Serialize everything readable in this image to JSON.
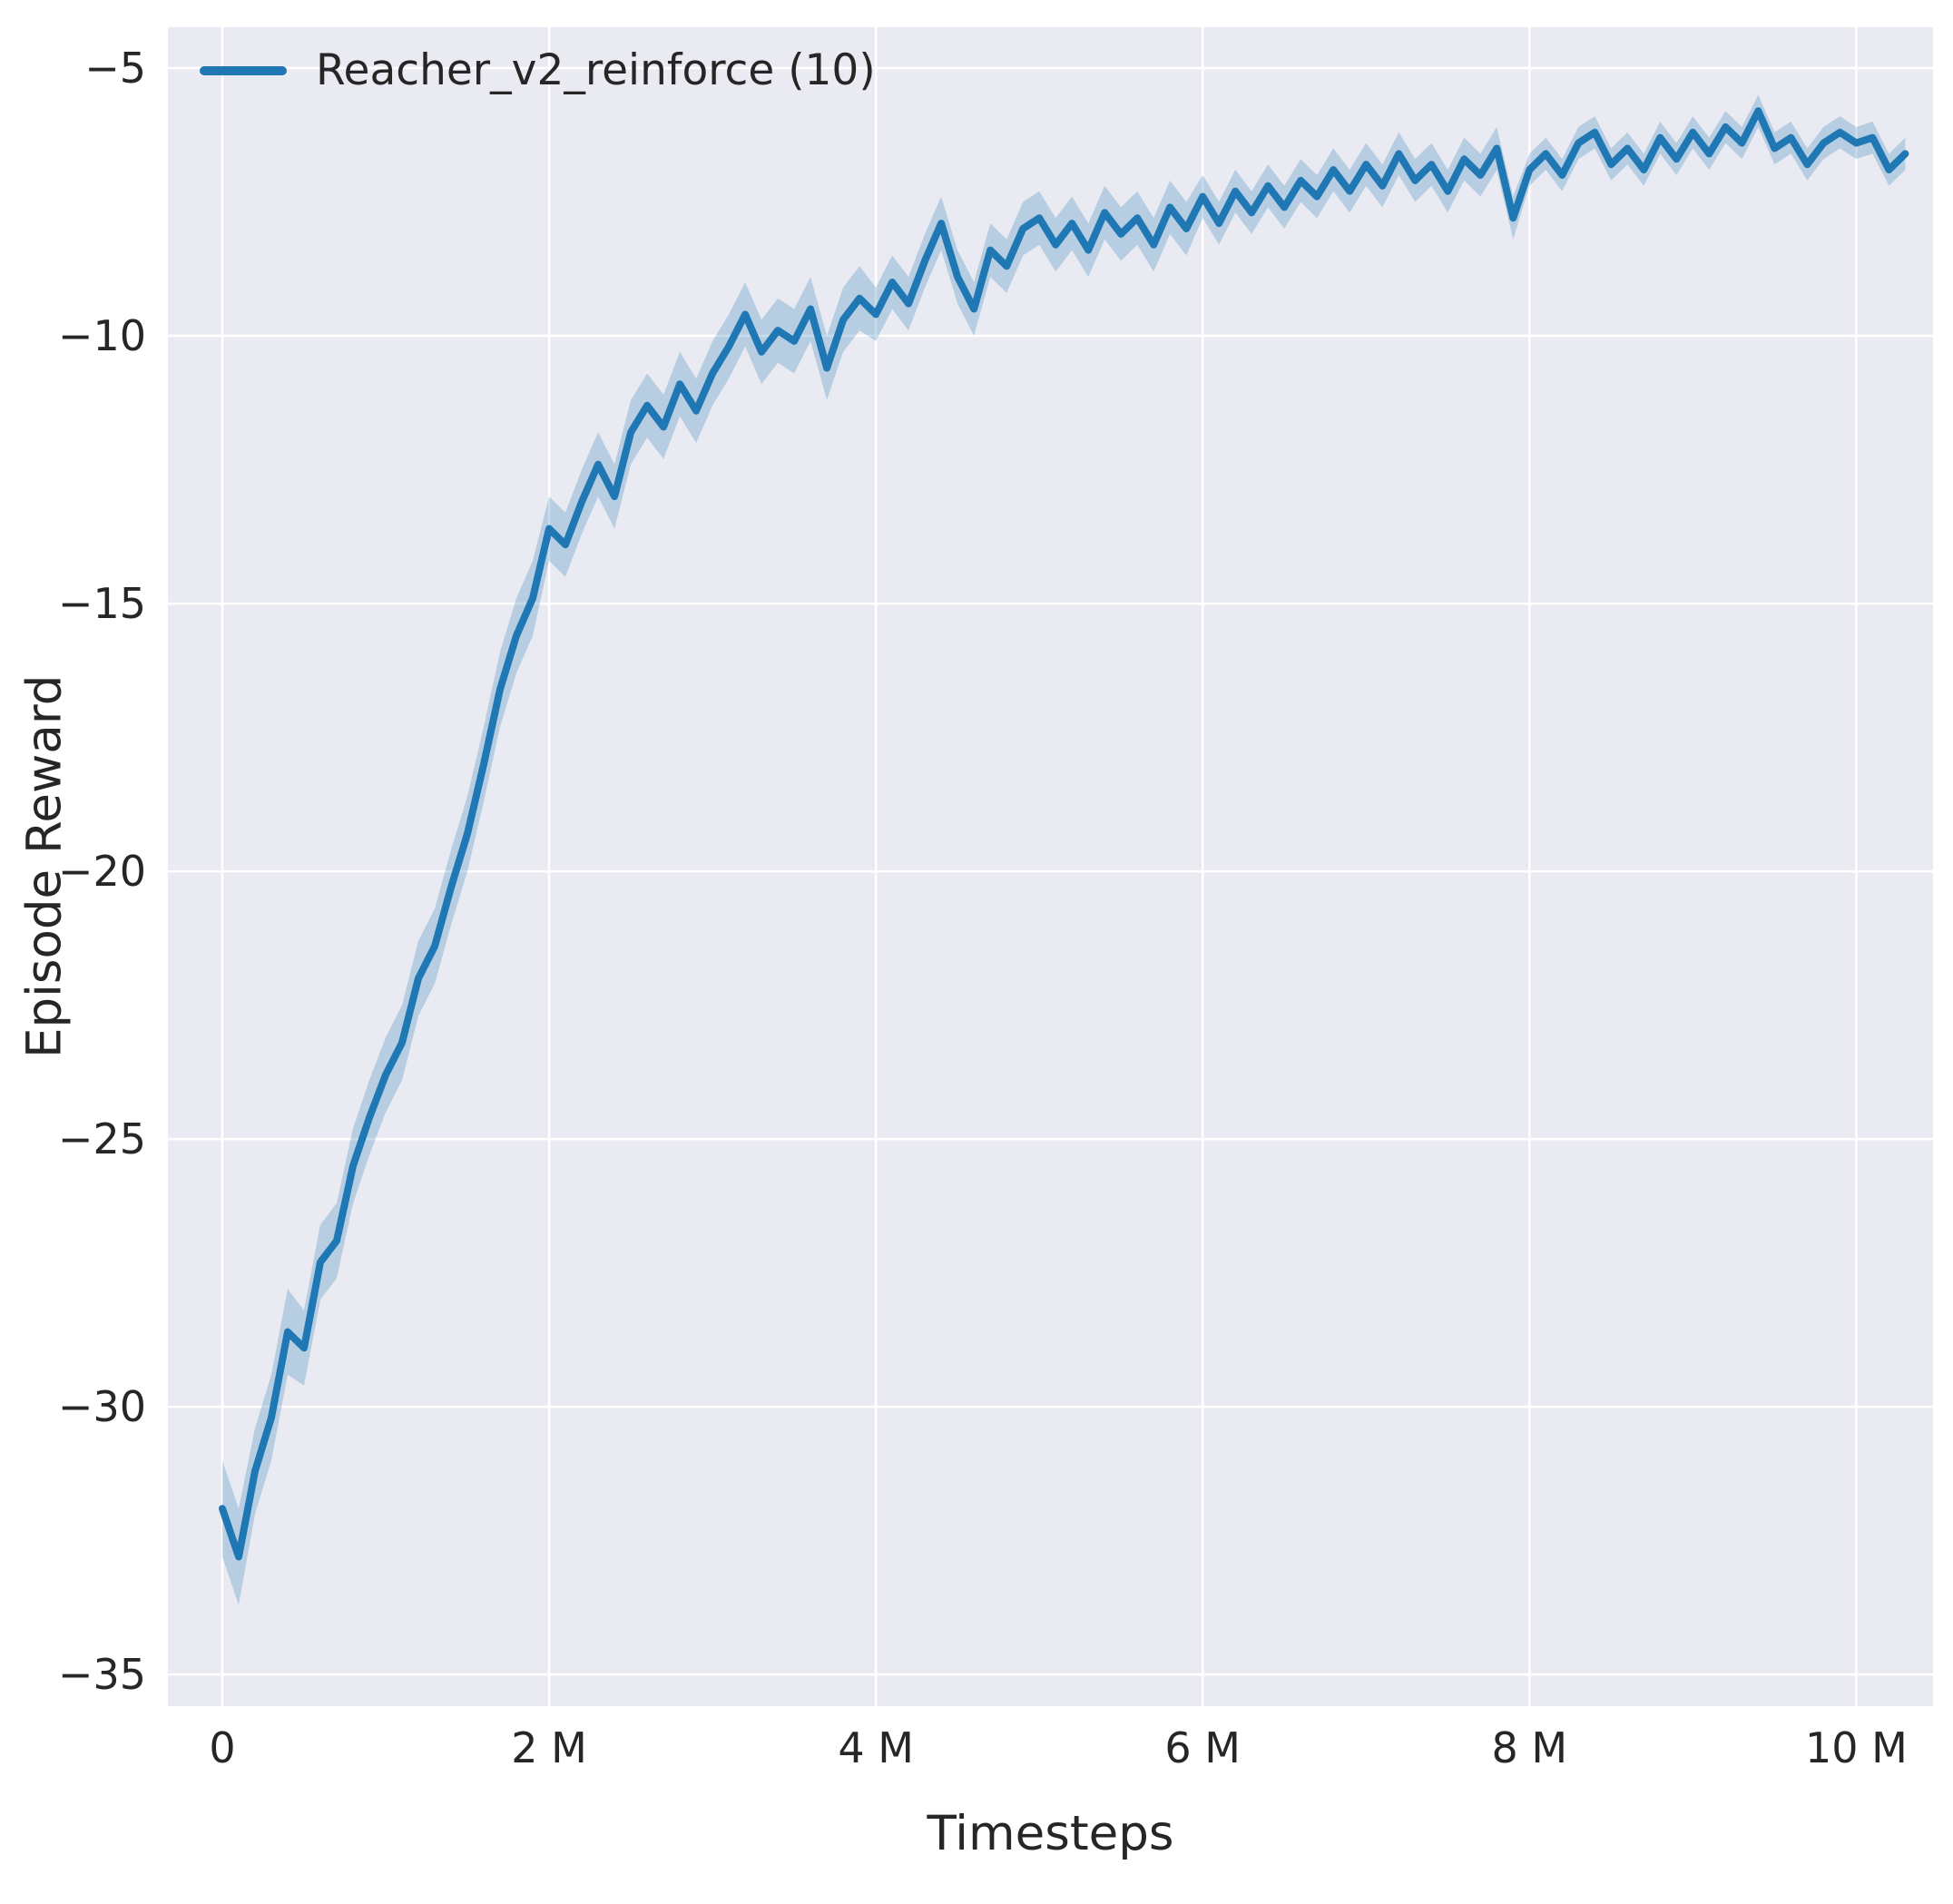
{
  "chart_data": {
    "type": "line",
    "title": "",
    "xlabel": "Timesteps",
    "ylabel": "Episode Reward",
    "x_unit": "millions of timesteps",
    "grid": true,
    "legend_position": "upper left",
    "colors": {
      "plot_bg": "#eaeaf2",
      "gridline": "#ffffff",
      "text": "#262626",
      "series": "#1f77b4",
      "band_opacity": 0.25
    },
    "xlim": [
      -0.333,
      10.47
    ],
    "ylim": [
      -35.59,
      -4.237
    ],
    "xticks": [
      {
        "v": 0,
        "label": "0"
      },
      {
        "v": 2,
        "label": "2 M"
      },
      {
        "v": 4,
        "label": "4 M"
      },
      {
        "v": 6,
        "label": "6 M"
      },
      {
        "v": 8,
        "label": "8 M"
      },
      {
        "v": 10,
        "label": "10 M"
      }
    ],
    "yticks": [
      {
        "v": -5,
        "label": "−5"
      },
      {
        "v": -10,
        "label": "−10"
      },
      {
        "v": -15,
        "label": "−15"
      },
      {
        "v": -20,
        "label": "−20"
      },
      {
        "v": -25,
        "label": "−25"
      },
      {
        "v": -30,
        "label": "−30"
      },
      {
        "v": -35,
        "label": "−35"
      }
    ],
    "legend": [
      {
        "name": "Reacher_v2_reinforce (10)",
        "color": "#1f77b4"
      }
    ],
    "series": [
      {
        "name": "Reacher_v2_reinforce (10)",
        "color": "#1f77b4",
        "x": [
          0.0,
          0.1,
          0.2,
          0.3,
          0.4,
          0.5,
          0.6,
          0.7,
          0.8,
          0.9,
          1.0,
          1.1,
          1.2,
          1.3,
          1.4,
          1.5,
          1.6,
          1.7,
          1.8,
          1.9,
          2.0,
          2.1,
          2.2,
          2.3,
          2.4,
          2.5,
          2.6,
          2.7,
          2.8,
          2.9,
          3.0,
          3.1,
          3.2,
          3.3,
          3.4,
          3.5,
          3.6,
          3.7,
          3.8,
          3.9,
          4.0,
          4.1,
          4.2,
          4.3,
          4.4,
          4.5,
          4.6,
          4.7,
          4.8,
          4.9,
          5.0,
          5.1,
          5.2,
          5.3,
          5.4,
          5.5,
          5.6,
          5.7,
          5.8,
          5.9,
          6.0,
          6.1,
          6.2,
          6.3,
          6.4,
          6.5,
          6.6,
          6.7,
          6.8,
          6.9,
          7.0,
          7.1,
          7.2,
          7.3,
          7.4,
          7.5,
          7.6,
          7.7,
          7.8,
          7.9,
          8.0,
          8.1,
          8.2,
          8.3,
          8.4,
          8.5,
          8.6,
          8.7,
          8.8,
          8.9,
          9.0,
          9.1,
          9.2,
          9.3,
          9.4,
          9.5,
          9.6,
          9.7,
          9.8,
          9.9,
          10.0,
          10.1,
          10.2,
          10.3
        ],
        "y": [
          -31.9,
          -32.8,
          -31.2,
          -30.2,
          -28.6,
          -28.9,
          -27.3,
          -26.9,
          -25.5,
          -24.6,
          -23.8,
          -23.2,
          -22.0,
          -21.4,
          -20.3,
          -19.3,
          -18.0,
          -16.6,
          -15.6,
          -14.9,
          -13.6,
          -13.9,
          -13.1,
          -12.4,
          -13.0,
          -11.8,
          -11.3,
          -11.7,
          -10.9,
          -11.4,
          -10.7,
          -10.2,
          -9.6,
          -10.3,
          -9.9,
          -10.1,
          -9.5,
          -10.6,
          -9.7,
          -9.3,
          -9.6,
          -9.0,
          -9.4,
          -8.6,
          -7.9,
          -8.9,
          -9.5,
          -8.4,
          -8.7,
          -8.0,
          -7.8,
          -8.3,
          -7.9,
          -8.4,
          -7.7,
          -8.1,
          -7.8,
          -8.3,
          -7.6,
          -8.0,
          -7.4,
          -7.9,
          -7.3,
          -7.7,
          -7.2,
          -7.6,
          -7.1,
          -7.4,
          -6.9,
          -7.3,
          -6.8,
          -7.2,
          -6.6,
          -7.1,
          -6.8,
          -7.3,
          -6.7,
          -7.0,
          -6.5,
          -7.8,
          -6.9,
          -6.6,
          -7.0,
          -6.4,
          -6.2,
          -6.8,
          -6.5,
          -6.9,
          -6.3,
          -6.7,
          -6.2,
          -6.6,
          -6.1,
          -6.4,
          -5.8,
          -6.5,
          -6.3,
          -6.8,
          -6.4,
          -6.2,
          -6.4,
          -6.3,
          -6.9,
          -6.6
        ],
        "band": [
          0.9,
          0.9,
          0.8,
          0.8,
          0.8,
          0.7,
          0.7,
          0.7,
          0.7,
          0.7,
          0.7,
          0.7,
          0.7,
          0.7,
          0.7,
          0.7,
          0.7,
          0.7,
          0.7,
          0.7,
          0.6,
          0.6,
          0.6,
          0.6,
          0.6,
          0.6,
          0.6,
          0.6,
          0.6,
          0.6,
          0.6,
          0.6,
          0.6,
          0.6,
          0.6,
          0.6,
          0.6,
          0.6,
          0.6,
          0.6,
          0.5,
          0.5,
          0.5,
          0.5,
          0.5,
          0.5,
          0.5,
          0.5,
          0.5,
          0.5,
          0.5,
          0.5,
          0.5,
          0.5,
          0.5,
          0.5,
          0.5,
          0.5,
          0.5,
          0.5,
          0.4,
          0.4,
          0.4,
          0.4,
          0.4,
          0.4,
          0.4,
          0.4,
          0.4,
          0.4,
          0.4,
          0.4,
          0.4,
          0.4,
          0.4,
          0.4,
          0.4,
          0.4,
          0.4,
          0.4,
          0.3,
          0.3,
          0.3,
          0.3,
          0.3,
          0.3,
          0.3,
          0.3,
          0.3,
          0.3,
          0.3,
          0.3,
          0.3,
          0.3,
          0.3,
          0.3,
          0.3,
          0.3,
          0.3,
          0.3,
          0.3,
          0.3,
          0.3,
          0.3
        ]
      }
    ],
    "layout": {
      "plot_left": 185,
      "plot_top": 30,
      "plot_right": 2130,
      "plot_bottom": 1880,
      "tick_font_size": 46,
      "gridline_width": 2.5,
      "line_width": 8
    }
  }
}
